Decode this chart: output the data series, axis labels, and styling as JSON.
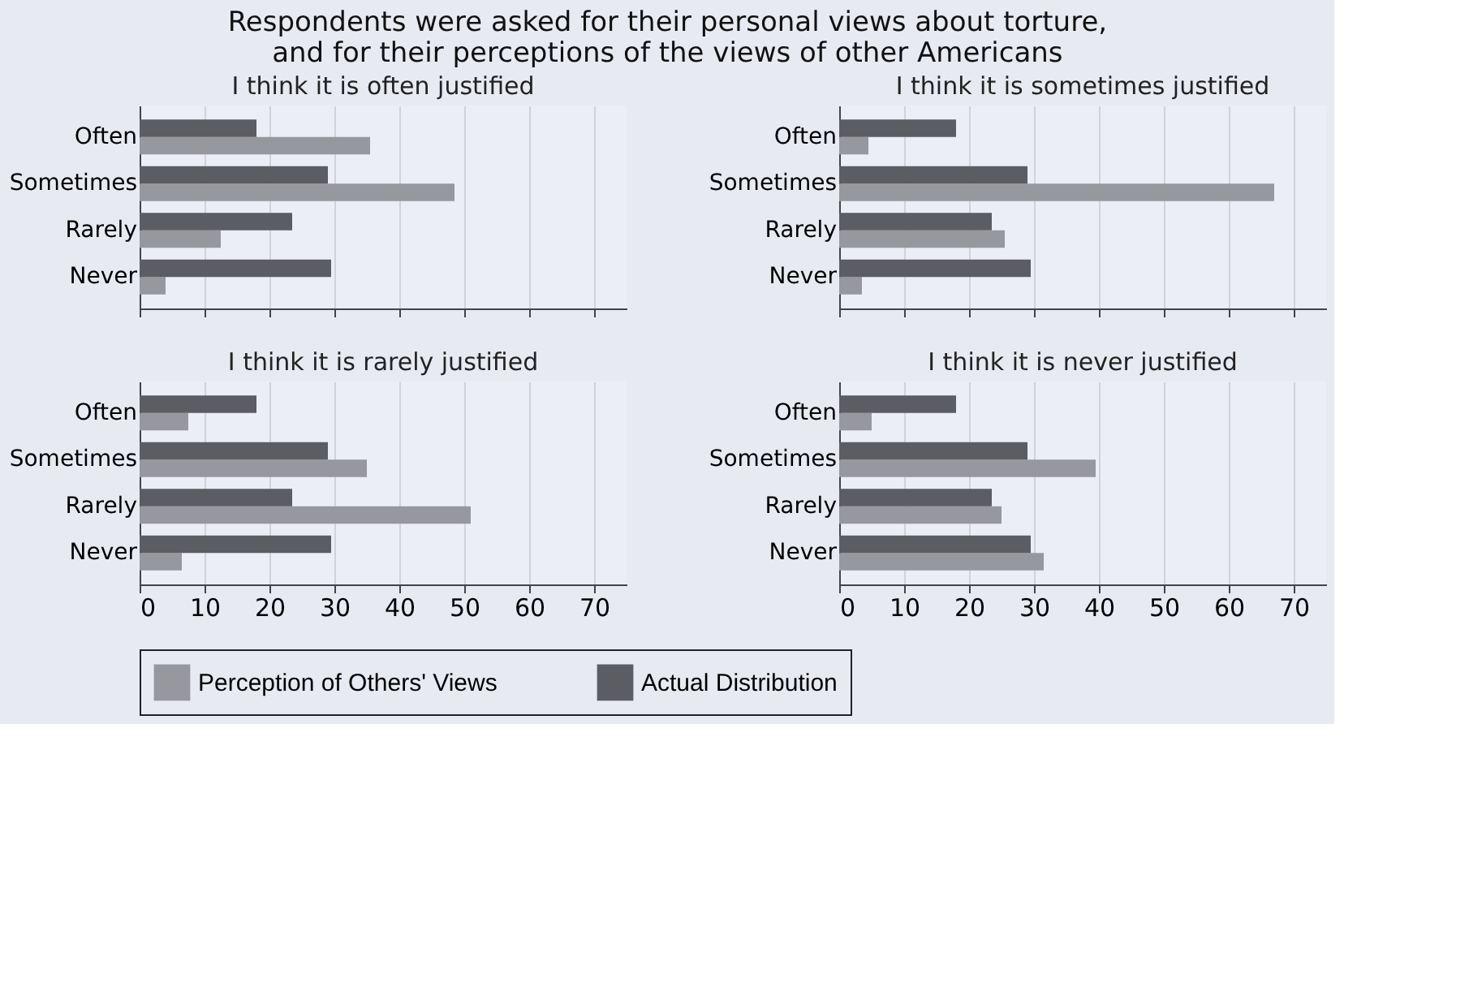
{
  "chart_data": [
    {
      "type": "bar",
      "orientation": "horizontal",
      "title": "Respondents were asked for their personal views about torture,\nand for their perceptions of the views of other Americans",
      "subtitle": "I think it is often justified",
      "categories": [
        "Often",
        "Sometimes",
        "Rarely",
        "Never"
      ],
      "xlim": [
        0,
        75
      ],
      "xticks": [
        0,
        10,
        20,
        30,
        40,
        50,
        60,
        70
      ],
      "grid": "x",
      "legend": "bottom",
      "tick_labels": "y",
      "series": [
        {
          "name": "Perception of Others' Views",
          "color": "#96989d",
          "values": [
            35.5,
            48.5,
            12.5,
            4
          ]
        },
        {
          "name": "Actual Distribution",
          "color": "#5b5d63",
          "values": [
            18,
            29,
            23.5,
            29.5
          ]
        }
      ]
    },
    {
      "type": "bar",
      "orientation": "horizontal",
      "subtitle": "I think it is sometimes justified",
      "categories": [
        "Often",
        "Sometimes",
        "Rarely",
        "Never"
      ],
      "xlim": [
        0,
        75
      ],
      "xticks": [
        0,
        10,
        20,
        30,
        40,
        50,
        60,
        70
      ],
      "grid": "x",
      "legend": "bottom",
      "tick_labels": "y",
      "series": [
        {
          "name": "Perception of Others' Views",
          "color": "#96989d",
          "values": [
            4.5,
            67,
            25.5,
            3.5
          ]
        },
        {
          "name": "Actual Distribution",
          "color": "#5b5d63",
          "values": [
            18,
            29,
            23.5,
            29.5
          ]
        }
      ]
    },
    {
      "type": "bar",
      "orientation": "horizontal",
      "subtitle": "I think it is rarely justified",
      "categories": [
        "Often",
        "Sometimes",
        "Rarely",
        "Never"
      ],
      "xlim": [
        0,
        75
      ],
      "xticks": [
        0,
        10,
        20,
        30,
        40,
        50,
        60,
        70
      ],
      "grid": "x",
      "legend": "bottom",
      "series": [
        {
          "name": "Perception of Others' Views",
          "color": "#96989d",
          "values": [
            7.5,
            35,
            51,
            6.5
          ]
        },
        {
          "name": "Actual Distribution",
          "color": "#5b5d63",
          "values": [
            18,
            29,
            23.5,
            29.5
          ]
        }
      ]
    },
    {
      "type": "bar",
      "orientation": "horizontal",
      "subtitle": "I think it is never justified",
      "categories": [
        "Often",
        "Sometimes",
        "Rarely",
        "Never"
      ],
      "xlim": [
        0,
        75
      ],
      "xticks": [
        0,
        10,
        20,
        30,
        40,
        50,
        60,
        70
      ],
      "grid": "x",
      "legend": "bottom",
      "series": [
        {
          "name": "Perception of Others' Views",
          "color": "#96989d",
          "values": [
            5,
            39.5,
            25,
            31.5
          ]
        },
        {
          "name": "Actual Distribution",
          "color": "#5b5d63",
          "values": [
            18,
            29,
            23.5,
            29.5
          ]
        }
      ]
    }
  ]
}
